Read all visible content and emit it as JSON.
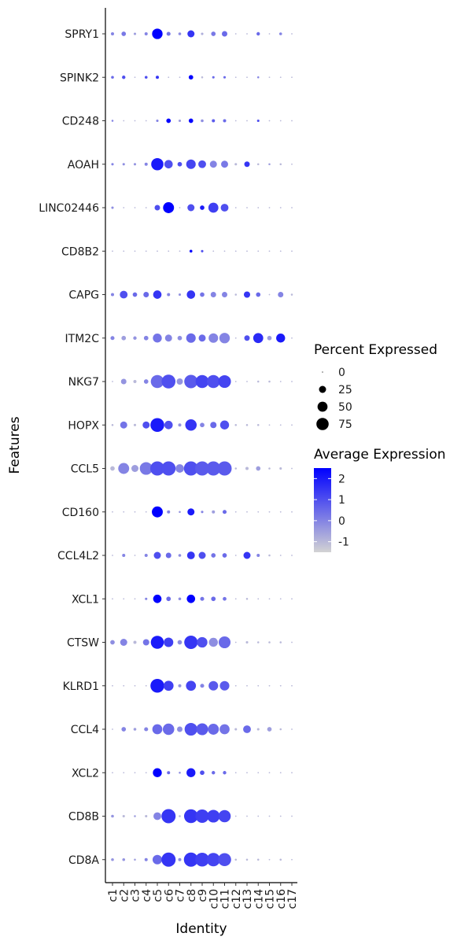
{
  "chart_data": {
    "type": "dotplot",
    "xlabel": "Identity",
    "ylabel": "Features",
    "categories": [
      "c1",
      "c2",
      "c3",
      "c4",
      "c5",
      "c6",
      "c7",
      "c8",
      "c9",
      "c10",
      "c11",
      "c12",
      "c13",
      "c14",
      "c15",
      "c16",
      "c17"
    ],
    "features": [
      "SPRY1",
      "SPINK2",
      "CD248",
      "AOAH",
      "LINC02446",
      "CD8B2",
      "CAPG",
      "ITM2C",
      "NKG7",
      "HOPX",
      "CCL5",
      "CD160",
      "CCL4L2",
      "XCL1",
      "CTSW",
      "KLRD1",
      "CCL4",
      "XCL2",
      "CD8B",
      "CD8A"
    ],
    "percent_expressed": {
      "SPRY1": [
        5,
        10,
        3,
        5,
        55,
        8,
        4,
        25,
        3,
        10,
        15,
        1,
        1,
        6,
        1,
        4,
        1
      ],
      "SPINK2": [
        4,
        6,
        1,
        4,
        5,
        1,
        1,
        10,
        2,
        3,
        3,
        1,
        1,
        2,
        1,
        1,
        1
      ],
      "CD248": [
        2,
        1,
        1,
        1,
        3,
        10,
        3,
        10,
        4,
        5,
        5,
        1,
        1,
        3,
        1,
        1,
        1
      ],
      "AOAH": [
        3,
        3,
        3,
        5,
        75,
        35,
        10,
        45,
        30,
        25,
        25,
        3,
        15,
        2,
        2,
        2,
        1
      ],
      "LINC02446": [
        3,
        1,
        1,
        1,
        15,
        60,
        1,
        25,
        10,
        50,
        30,
        1,
        1,
        1,
        1,
        1,
        1
      ],
      "CD8B2": [
        1,
        1,
        1,
        1,
        1,
        1,
        1,
        4,
        3,
        1,
        1,
        1,
        1,
        1,
        1,
        1,
        1
      ],
      "CAPG": [
        5,
        30,
        10,
        15,
        35,
        5,
        3,
        35,
        10,
        15,
        15,
        2,
        20,
        10,
        1,
        15,
        2
      ],
      "ITM2C": [
        8,
        10,
        6,
        10,
        40,
        25,
        10,
        45,
        25,
        45,
        55,
        1,
        15,
        50,
        10,
        40,
        1
      ],
      "NKG7": [
        1,
        15,
        5,
        10,
        85,
        95,
        20,
        90,
        85,
        85,
        80,
        1,
        1,
        2,
        2,
        1,
        1
      ],
      "HOPX": [
        2,
        25,
        3,
        25,
        95,
        35,
        5,
        65,
        10,
        20,
        40,
        2,
        2,
        2,
        1,
        1,
        1
      ],
      "CCL5": [
        10,
        60,
        25,
        80,
        100,
        100,
        35,
        100,
        100,
        100,
        100,
        2,
        5,
        10,
        2,
        3,
        1
      ],
      "CD160": [
        1,
        1,
        1,
        1,
        60,
        5,
        2,
        25,
        3,
        5,
        8,
        1,
        1,
        1,
        1,
        1,
        1
      ],
      "CCL4L2": [
        1,
        5,
        1,
        5,
        25,
        15,
        4,
        30,
        25,
        10,
        10,
        1,
        25,
        5,
        2,
        1,
        1
      ],
      "XCL1": [
        1,
        1,
        1,
        3,
        35,
        10,
        4,
        35,
        8,
        10,
        7,
        1,
        2,
        1,
        1,
        1,
        1
      ],
      "CTSW": [
        10,
        25,
        5,
        20,
        85,
        45,
        10,
        90,
        55,
        40,
        70,
        1,
        3,
        2,
        2,
        2,
        1
      ],
      "KLRD1": [
        1,
        1,
        1,
        1,
        95,
        50,
        5,
        50,
        8,
        45,
        45,
        1,
        1,
        1,
        1,
        1,
        1
      ],
      "CCL4": [
        1,
        10,
        4,
        8,
        50,
        65,
        15,
        80,
        70,
        60,
        50,
        3,
        30,
        3,
        10,
        2,
        1
      ],
      "XCL2": [
        1,
        1,
        1,
        1,
        40,
        5,
        2,
        40,
        10,
        6,
        6,
        1,
        1,
        1,
        1,
        1,
        1
      ],
      "CD8B": [
        4,
        3,
        2,
        3,
        30,
        100,
        2,
        95,
        90,
        80,
        75,
        1,
        1,
        1,
        1,
        1,
        1
      ],
      "CD8A": [
        4,
        4,
        2,
        5,
        45,
        100,
        5,
        100,
        95,
        90,
        85,
        2,
        2,
        2,
        1,
        2,
        1
      ]
    },
    "average_expression": {
      "SPRY1": [
        0,
        0.2,
        -0.5,
        0,
        2.5,
        0.3,
        -0.2,
        1.5,
        -0.8,
        0.2,
        0.5,
        -1,
        -1,
        0.5,
        -1,
        0,
        -1
      ],
      "SPINK2": [
        0.5,
        1,
        -1,
        1,
        1.5,
        -1,
        -1,
        3,
        -1,
        0.5,
        0.5,
        -1,
        -1,
        0,
        -1,
        -1,
        -1
      ],
      "CD248": [
        0,
        -1,
        -1,
        -1,
        0,
        2.5,
        -0.5,
        2.5,
        -0.2,
        0.8,
        0.5,
        -1,
        -1,
        1,
        -1,
        -1,
        -1
      ],
      "AOAH": [
        0,
        -0.2,
        -0.3,
        0,
        2,
        1,
        1,
        1.2,
        1,
        0,
        0.2,
        -1,
        1.5,
        -1,
        -0.5,
        -1,
        -1
      ],
      "LINC02446": [
        -0.2,
        -1,
        -1,
        -1,
        1,
        2.5,
        -1,
        1,
        2,
        1.3,
        1,
        -1,
        -1,
        -1,
        -1,
        -1,
        -1
      ],
      "CD8B2": [
        -1,
        -1,
        -1,
        -1,
        -1,
        -1,
        -1,
        3,
        1,
        -1,
        -1,
        -1,
        -1,
        -1,
        -1,
        -1,
        -1
      ],
      "CAPG": [
        0,
        1,
        0.5,
        0.5,
        1.5,
        0,
        -0.3,
        1.5,
        0.3,
        0,
        0,
        -1,
        1.5,
        0.5,
        -1,
        0,
        -1
      ],
      "ITM2C": [
        0,
        -0.5,
        -0.3,
        0,
        0.3,
        0,
        -0.2,
        0.5,
        0.5,
        0,
        0,
        -1,
        1,
        1.7,
        -0.5,
        2,
        -1
      ],
      "NKG7": [
        -1,
        -0.3,
        -1,
        0,
        0.5,
        1,
        -0.3,
        0.8,
        1.2,
        1,
        1.2,
        -1,
        -1,
        -1,
        -1,
        -1,
        -1
      ],
      "HOPX": [
        -1,
        0.3,
        -1,
        1,
        2,
        1,
        -0.3,
        1.5,
        0,
        0.5,
        1,
        -1,
        -1,
        -1,
        -1,
        -1,
        -1
      ],
      "CCL5": [
        -1,
        0,
        -0.5,
        0.2,
        1,
        1,
        0,
        1,
        0.8,
        0.8,
        0.8,
        -1,
        -1,
        -0.5,
        -1,
        -1,
        -1
      ],
      "CD160": [
        -1,
        -1,
        -1,
        -1,
        3,
        0,
        -0.3,
        2,
        0,
        -0.5,
        0.5,
        -1,
        -1,
        -1,
        -1,
        -1,
        -1
      ],
      "CCL4L2": [
        -1,
        0,
        -1,
        0,
        1,
        0.5,
        -0.2,
        1.5,
        1,
        0.3,
        0.5,
        -1,
        1.5,
        0,
        -1,
        -1,
        -1
      ],
      "XCL1": [
        -1,
        -1,
        -1,
        0,
        2.5,
        0.5,
        -0.2,
        2.5,
        0.3,
        0.5,
        0.3,
        -1,
        -1,
        -1,
        -1,
        -1,
        -1
      ],
      "CTSW": [
        -0.2,
        0,
        -1,
        0.3,
        2,
        1.3,
        -0.2,
        1.5,
        1,
        -0.2,
        0.5,
        -1,
        -1,
        -1,
        -1,
        -1,
        -1
      ],
      "KLRD1": [
        -1,
        -1,
        -1,
        -1,
        2,
        1.3,
        -0.3,
        1.2,
        0,
        0.8,
        0.8,
        -1,
        -1,
        -1,
        -1,
        -1,
        -1
      ],
      "CCL4": [
        -1,
        0,
        -0.5,
        0,
        0.5,
        0.5,
        -0.2,
        1,
        0.8,
        0.5,
        0.3,
        -1,
        0.5,
        -1,
        -0.5,
        -1,
        -1
      ],
      "XCL2": [
        -1,
        -1,
        -1,
        -1,
        2.5,
        0.5,
        -0.2,
        2,
        1,
        0.5,
        0.5,
        -1,
        -1,
        -1,
        -1,
        -1,
        -1
      ],
      "CD8B": [
        -0.3,
        -1,
        -0.5,
        -1,
        0,
        1.5,
        -1,
        1.5,
        1.3,
        1.3,
        1.2,
        -1,
        -1,
        -1,
        -1,
        -1,
        -1
      ],
      "CD8A": [
        -0.3,
        -0.3,
        -0.5,
        0,
        0.5,
        1.5,
        -0.2,
        1.5,
        1.3,
        1.2,
        1,
        -1,
        -1,
        -1,
        -1,
        -1,
        -1
      ]
    },
    "size_legend": {
      "title": "Percent Expressed",
      "values": [
        0,
        25,
        50,
        75
      ],
      "labels": [
        "0",
        "25",
        "50",
        "75"
      ]
    },
    "color_legend": {
      "title": "Average Expression",
      "min": -1.5,
      "max": 2.5,
      "ticks": [
        2,
        1,
        0,
        -1
      ],
      "labels": [
        "2",
        "1",
        "0",
        "-1"
      ],
      "low_color": "#d3d3d3",
      "high_color": "#0000ff"
    },
    "grid": false,
    "legend_position": "right"
  }
}
